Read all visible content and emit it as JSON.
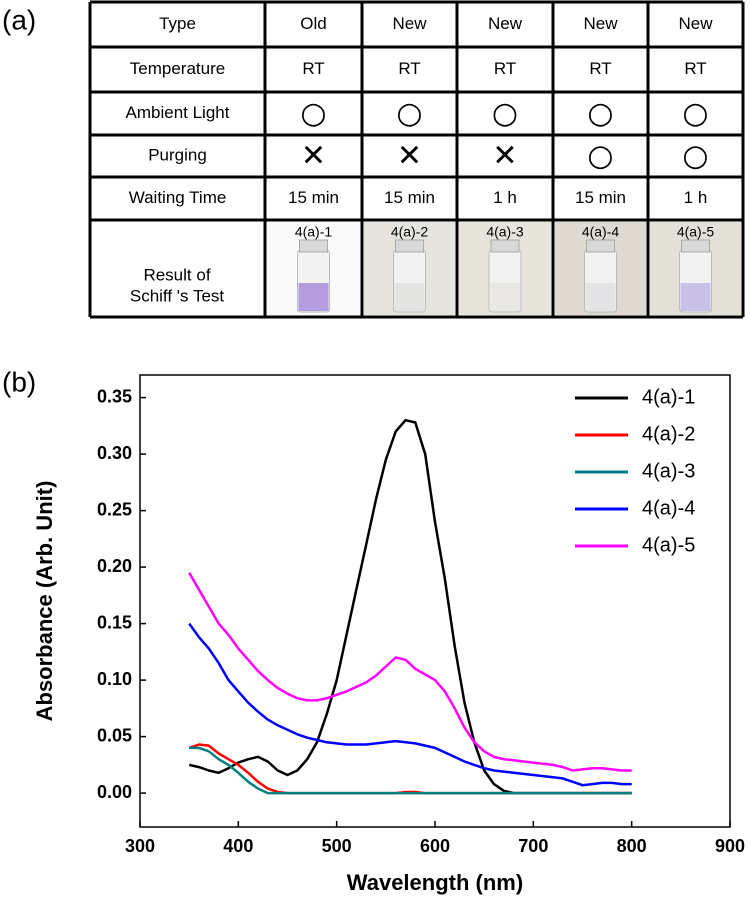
{
  "panels": [
    "(a)",
    "(b)"
  ],
  "table": {
    "rows": [
      [
        "Type",
        "Old",
        "New",
        "New",
        "New",
        "New"
      ],
      [
        "Temperature",
        "RT",
        "RT",
        "RT",
        "RT",
        "RT"
      ],
      [
        "Ambient Light",
        "○",
        "○",
        "○",
        "○",
        "○"
      ],
      [
        "Purging",
        "✕",
        "✕",
        "✕",
        "○",
        "○"
      ],
      [
        "Waiting Time",
        "15 min",
        "15 min",
        "1 h",
        "15 min",
        "1 h"
      ]
    ],
    "result": {
      "label": [
        "Result of",
        "Schiff 's Test"
      ],
      "samples": [
        "4(a)-1",
        "4(a)-2",
        "4(a)-3",
        "4(a)-4",
        "4(a)-5"
      ]
    }
  },
  "chart_data": {
    "type": "line",
    "x_label": "Wavelength (nm)",
    "y_label": "Absorbance (Arb. Unit)",
    "xlim": [
      300,
      900
    ],
    "xticks": [
      300,
      400,
      500,
      600,
      700,
      800,
      900
    ],
    "ylim": [
      -0.03,
      0.37
    ],
    "yticks": [
      {
        "value": 0,
        "label": "0.00"
      },
      {
        "value": 0.05,
        "label": "0.05"
      },
      {
        "value": 0.1,
        "label": "0.10"
      },
      {
        "value": 0.15,
        "label": "0.15"
      },
      {
        "value": 0.2,
        "label": "0.20"
      },
      {
        "value": 0.25,
        "label": "0.25"
      },
      {
        "value": 0.3,
        "label": "0.30"
      },
      {
        "value": 0.35,
        "label": "0.35"
      }
    ],
    "legend": "upper-right",
    "x": [
      350,
      360,
      370,
      380,
      390,
      400,
      410,
      420,
      430,
      440,
      450,
      460,
      470,
      480,
      490,
      500,
      510,
      520,
      530,
      540,
      550,
      560,
      570,
      580,
      590,
      600,
      610,
      620,
      630,
      640,
      650,
      660,
      670,
      680,
      690,
      700,
      710,
      720,
      730,
      740,
      750,
      760,
      770,
      780,
      790,
      800
    ],
    "series": [
      {
        "name": "4(a)-1",
        "color": "#000000",
        "values": [
          0.025,
          0.023,
          0.02,
          0.018,
          0.022,
          0.027,
          0.03,
          0.032,
          0.028,
          0.02,
          0.016,
          0.02,
          0.03,
          0.045,
          0.07,
          0.1,
          0.14,
          0.18,
          0.22,
          0.26,
          0.295,
          0.32,
          0.33,
          0.328,
          0.3,
          0.24,
          0.19,
          0.13,
          0.08,
          0.045,
          0.02,
          0.008,
          0.002,
          0,
          0,
          0,
          0,
          0,
          0,
          0,
          0,
          0,
          0,
          0,
          0,
          0
        ]
      },
      {
        "name": "4(a)-2",
        "color": "#ff0000",
        "values": [
          0.04,
          0.043,
          0.042,
          0.035,
          0.03,
          0.025,
          0.018,
          0.01,
          0.004,
          0.001,
          0,
          0,
          0,
          0,
          0,
          0,
          0,
          0,
          0,
          0,
          0,
          0,
          0.001,
          0.001,
          0,
          0,
          0,
          0,
          0,
          0,
          0,
          0,
          0,
          0,
          0,
          0,
          0,
          0,
          0,
          0,
          0,
          0,
          0,
          0,
          0,
          0
        ]
      },
      {
        "name": "4(a)-3",
        "color": "#008080",
        "values": [
          0.04,
          0.04,
          0.037,
          0.03,
          0.025,
          0.018,
          0.01,
          0.004,
          0,
          0,
          0,
          0,
          0,
          0,
          0,
          0,
          0,
          0,
          0,
          0,
          0,
          0,
          0,
          0,
          0,
          0,
          0,
          0,
          0,
          0,
          0,
          0,
          0,
          0,
          0,
          0,
          0,
          0,
          0,
          0,
          0,
          0,
          0,
          0,
          0,
          0
        ]
      },
      {
        "name": "4(a)-4",
        "color": "#0000ff",
        "values": [
          0.15,
          0.138,
          0.128,
          0.115,
          0.1,
          0.09,
          0.08,
          0.072,
          0.065,
          0.06,
          0.056,
          0.052,
          0.049,
          0.047,
          0.045,
          0.044,
          0.043,
          0.043,
          0.043,
          0.044,
          0.045,
          0.046,
          0.045,
          0.044,
          0.042,
          0.04,
          0.036,
          0.032,
          0.028,
          0.025,
          0.022,
          0.02,
          0.019,
          0.018,
          0.017,
          0.016,
          0.015,
          0.014,
          0.013,
          0.01,
          0.007,
          0.008,
          0.009,
          0.009,
          0.008,
          0.008
        ]
      },
      {
        "name": "4(a)-5",
        "color": "#ff00ff",
        "values": [
          0.195,
          0.18,
          0.165,
          0.15,
          0.14,
          0.128,
          0.118,
          0.108,
          0.1,
          0.093,
          0.088,
          0.084,
          0.082,
          0.082,
          0.084,
          0.087,
          0.09,
          0.094,
          0.098,
          0.104,
          0.112,
          0.12,
          0.118,
          0.11,
          0.105,
          0.1,
          0.09,
          0.075,
          0.058,
          0.045,
          0.037,
          0.032,
          0.03,
          0.029,
          0.028,
          0.027,
          0.026,
          0.025,
          0.023,
          0.02,
          0.021,
          0.022,
          0.022,
          0.021,
          0.02,
          0.02
        ]
      }
    ]
  }
}
